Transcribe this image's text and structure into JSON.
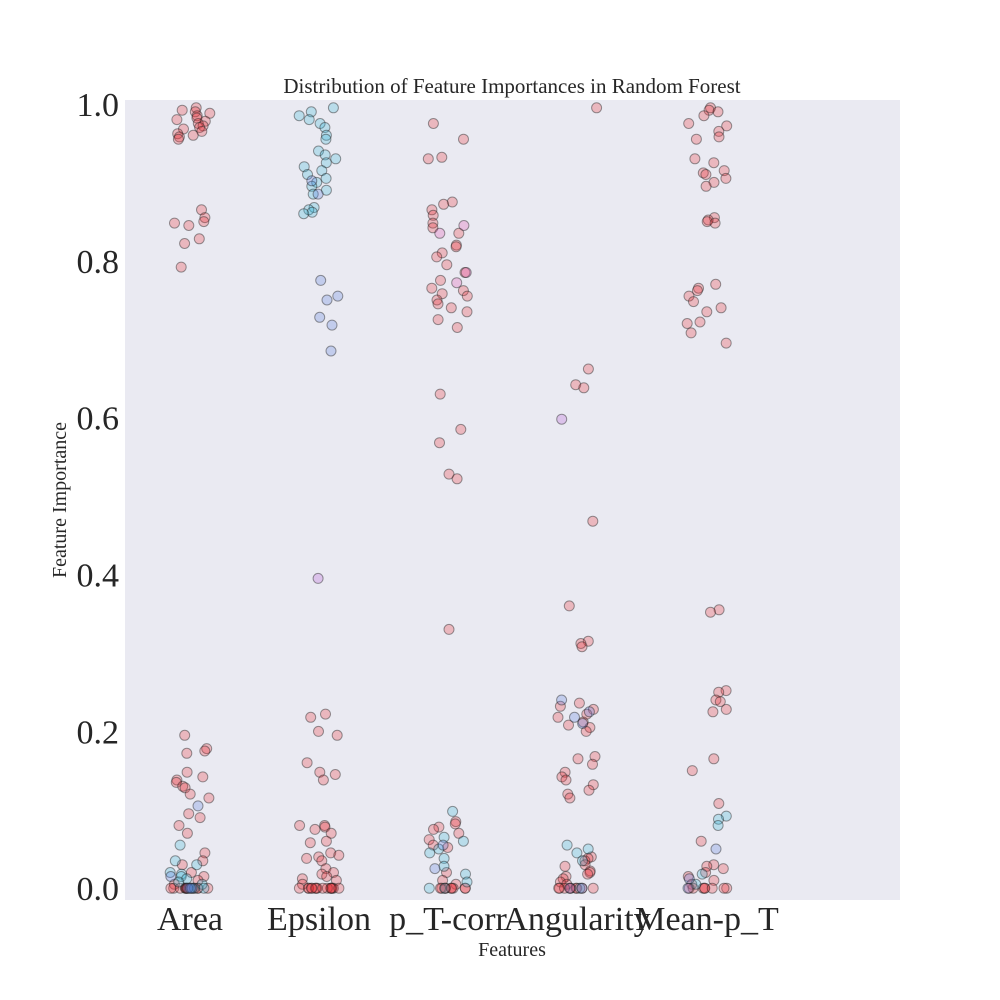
{
  "chart_data": {
    "type": "scatter",
    "title": "Distribution of Feature Importances in Random Forest",
    "xlabel": "Features",
    "ylabel": "Feature Importance",
    "categories": [
      "Area",
      "Epsilon",
      "p_T-corr",
      "Angularity",
      "Mean-p_T"
    ],
    "ylim": [
      -0.015,
      1.005
    ],
    "yticks": [
      "0.0",
      "0.2",
      "0.4",
      "0.6",
      "0.8",
      "1.0"
    ],
    "grid": false,
    "marker": "jittered strip points (alpha ~0.3), colored by run",
    "colors": {
      "background": "#eaeaf2",
      "red": "#e8313b",
      "cyan": "#3ab7d6",
      "blue": "#5b7fe0",
      "purple": "#b25bd6",
      "magenta": "#e04fb0"
    },
    "points": {
      "Area": {
        "red": [
          0.995,
          0.992,
          0.99,
          0.988,
          0.985,
          0.982,
          0.98,
          0.978,
          0.975,
          0.972,
          0.97,
          0.968,
          0.965,
          0.962,
          0.96,
          0.958,
          0.955,
          0.865,
          0.855,
          0.85,
          0.848,
          0.845,
          0.828,
          0.822,
          0.792,
          0.195,
          0.178,
          0.175,
          0.172,
          0.148,
          0.142,
          0.138,
          0.135,
          0.13,
          0.128,
          0.12,
          0.115,
          0.095,
          0.09,
          0.08,
          0.07,
          0.045,
          0.035,
          0.03,
          0.02,
          0.015,
          0.01,
          0.005,
          0.0,
          0.0,
          0.0,
          0.0,
          0.0,
          0.0,
          0.0,
          0.0,
          0.0,
          0.0,
          0.0,
          0.0
        ],
        "cyan": [
          0.055,
          0.035,
          0.03,
          0.02,
          0.018,
          0.015,
          0.012,
          0.008,
          0.005,
          0.0,
          0.0,
          0.0,
          0.0
        ],
        "blue": [
          0.105,
          0.015,
          0.0,
          0.0,
          0.0
        ]
      },
      "Epsilon": {
        "red": [
          0.222,
          0.218,
          0.2,
          0.195,
          0.16,
          0.148,
          0.145,
          0.138,
          0.08,
          0.08,
          0.078,
          0.075,
          0.07,
          0.06,
          0.058,
          0.045,
          0.042,
          0.04,
          0.038,
          0.035,
          0.025,
          0.02,
          0.018,
          0.015,
          0.012,
          0.01,
          0.005,
          0.0,
          0.0,
          0.0,
          0.0,
          0.0,
          0.0,
          0.0,
          0.0,
          0.0,
          0.0,
          0.0,
          0.0,
          0.0,
          0.0,
          0.0,
          0.0
        ],
        "cyan": [
          0.995,
          0.99,
          0.985,
          0.98,
          0.975,
          0.97,
          0.96,
          0.955,
          0.94,
          0.935,
          0.93,
          0.925,
          0.92,
          0.915,
          0.91,
          0.905,
          0.9,
          0.895,
          0.89,
          0.885,
          0.868,
          0.865,
          0.862,
          0.86
        ],
        "blue": [
          0.775,
          0.755,
          0.75,
          0.728,
          0.718,
          0.685,
          0.902,
          0.885
        ],
        "purple": [
          0.395
        ]
      },
      "p_T-corr": {
        "red": [
          0.975,
          0.955,
          0.932,
          0.93,
          0.875,
          0.872,
          0.865,
          0.858,
          0.848,
          0.842,
          0.835,
          0.82,
          0.818,
          0.81,
          0.805,
          0.795,
          0.785,
          0.775,
          0.765,
          0.762,
          0.758,
          0.755,
          0.75,
          0.745,
          0.74,
          0.735,
          0.725,
          0.715,
          0.63,
          0.585,
          0.568,
          0.528,
          0.522,
          0.33,
          0.085,
          0.082,
          0.078,
          0.075,
          0.07,
          0.062,
          0.055,
          0.052,
          0.02,
          0.01,
          0.005,
          0.0,
          0.0,
          0.0,
          0.0,
          0.0,
          0.0,
          0.0,
          0.0,
          0.0
        ],
        "cyan": [
          0.098,
          0.065,
          0.06,
          0.05,
          0.045,
          0.038,
          0.028,
          0.018,
          0.008,
          0.0,
          0.0
        ],
        "blue": [
          0.055,
          0.025
        ],
        "magenta": [
          0.845,
          0.835,
          0.785,
          0.772
        ]
      },
      "Angularity": {
        "red": [
          0.995,
          0.662,
          0.642,
          0.638,
          0.468,
          0.36,
          0.315,
          0.312,
          0.308,
          0.236,
          0.232,
          0.228,
          0.222,
          0.218,
          0.212,
          0.208,
          0.205,
          0.2,
          0.168,
          0.165,
          0.158,
          0.148,
          0.142,
          0.138,
          0.132,
          0.125,
          0.12,
          0.115,
          0.04,
          0.038,
          0.035,
          0.03,
          0.028,
          0.022,
          0.02,
          0.018,
          0.015,
          0.012,
          0.008,
          0.005,
          0.0,
          0.0,
          0.0,
          0.0,
          0.0,
          0.0,
          0.0,
          0.0,
          0.0
        ],
        "cyan": [
          0.055,
          0.05,
          0.045,
          0.035,
          0.0
        ],
        "blue": [
          0.24,
          0.225,
          0.218,
          0.21,
          0.0,
          0.0
        ],
        "purple": [
          0.598
        ]
      },
      "Mean-p_T": {
        "red": [
          0.995,
          0.992,
          0.99,
          0.985,
          0.975,
          0.972,
          0.965,
          0.958,
          0.955,
          0.93,
          0.925,
          0.915,
          0.912,
          0.91,
          0.905,
          0.9,
          0.895,
          0.855,
          0.852,
          0.85,
          0.848,
          0.77,
          0.765,
          0.762,
          0.755,
          0.748,
          0.74,
          0.735,
          0.722,
          0.72,
          0.708,
          0.695,
          0.355,
          0.352,
          0.252,
          0.25,
          0.24,
          0.238,
          0.228,
          0.225,
          0.165,
          0.15,
          0.108,
          0.06,
          0.03,
          0.028,
          0.025,
          0.02,
          0.015,
          0.01,
          0.005,
          0.0,
          0.0,
          0.0,
          0.0,
          0.0,
          0.0,
          0.0,
          0.0
        ],
        "cyan": [
          0.092,
          0.088,
          0.08,
          0.018,
          0.005
        ],
        "blue": [
          0.05,
          0.012,
          0.0
        ]
      }
    }
  }
}
